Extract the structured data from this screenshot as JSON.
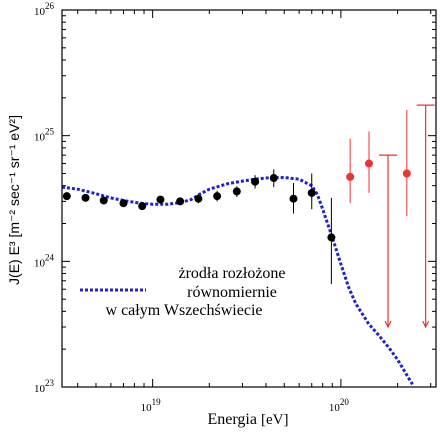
{
  "chart_data": {
    "type": "scatter",
    "x_scale": "log",
    "y_scale": "log",
    "xlim": [
      3.3e+18,
      3.2e+20
    ],
    "ylim": [
      1e+23,
      1e+26
    ],
    "xlabel_main": "Energia",
    "xlabel_unit": "[eV]",
    "ylabel": "J(E) E³ [m⁻² sec⁻¹ sr⁻¹ eV²]",
    "y_ticks": [
      {
        "value": 1e+23,
        "base": "10",
        "exp": "23"
      },
      {
        "value": 1e+24,
        "base": "10",
        "exp": "24"
      },
      {
        "value": 1e+25,
        "base": "10",
        "exp": "25"
      },
      {
        "value": 1e+26,
        "base": "10",
        "exp": "26"
      }
    ],
    "x_ticks": [
      {
        "value": 1e+19,
        "base": "10",
        "exp": "19"
      },
      {
        "value": 1e+20,
        "base": "10",
        "exp": "20"
      }
    ],
    "annotation": [
      "żrodła rozłożone",
      "równomiernie",
      "w całym Wszechświecie"
    ],
    "grid": false,
    "series": [
      {
        "kind": "points",
        "color": "#000000",
        "points": [
          {
            "x": 3.5e+18,
            "y": 3.3e+24,
            "lo": null,
            "hi": null
          },
          {
            "x": 4.4e+18,
            "y": 3.2e+24,
            "lo": null,
            "hi": null
          },
          {
            "x": 5.5e+18,
            "y": 3.05e+24,
            "lo": null,
            "hi": null
          },
          {
            "x": 7e+18,
            "y": 2.9e+24,
            "lo": null,
            "hi": null
          },
          {
            "x": 8.8e+18,
            "y": 2.75e+24,
            "lo": null,
            "hi": null
          },
          {
            "x": 1.1e+19,
            "y": 3.1e+24,
            "lo": null,
            "hi": null
          },
          {
            "x": 1.4e+19,
            "y": 3e+24,
            "lo": null,
            "hi": null
          },
          {
            "x": 1.75e+19,
            "y": 3.15e+24,
            "lo": 2.9e+24,
            "hi": 3.45e+24
          },
          {
            "x": 2.2e+19,
            "y": 3.3e+24,
            "lo": 3e+24,
            "hi": 3.65e+24
          },
          {
            "x": 2.8e+19,
            "y": 3.6e+24,
            "lo": 3.25e+24,
            "hi": 3.95e+24
          },
          {
            "x": 3.5e+19,
            "y": 4.3e+24,
            "lo": 3.8e+24,
            "hi": 4.85e+24
          },
          {
            "x": 4.4e+19,
            "y": 4.6e+24,
            "lo": 3.9e+24,
            "hi": 5.4e+24
          },
          {
            "x": 5.6e+19,
            "y": 3.15e+24,
            "lo": 2.4e+24,
            "hi": 4.2e+24
          },
          {
            "x": 7e+19,
            "y": 3.5e+24,
            "lo": 2.6e+24,
            "hi": 5e+24
          },
          {
            "x": 8.9e+19,
            "y": 1.55e+24,
            "lo": 6.6e+23,
            "hi": 3.2e+24
          }
        ]
      },
      {
        "kind": "points",
        "color": "#ee3333",
        "points": [
          {
            "x": 1.12e+20,
            "y": 4.7e+24,
            "lo": 2.9e+24,
            "hi": 9.5e+24
          },
          {
            "x": 1.41e+20,
            "y": 6e+24,
            "lo": 3.5e+24,
            "hi": 1.08e+25
          },
          {
            "x": 2.24e+20,
            "y": 5e+24,
            "lo": 2.3e+24,
            "hi": 1.6e+25
          }
        ]
      },
      {
        "kind": "upper_limits",
        "color": "#ee3333",
        "points": [
          {
            "x": 1.78e+20,
            "y": 7e+24
          },
          {
            "x": 2.82e+20,
            "y": 1.75e+25
          }
        ]
      },
      {
        "kind": "model_curve",
        "color": "#2222cc",
        "style": "dotted",
        "points": [
          {
            "x": 3.3e+18,
            "y": 3.9e+24
          },
          {
            "x": 4e+18,
            "y": 3.75e+24
          },
          {
            "x": 5e+18,
            "y": 3.45e+24
          },
          {
            "x": 6e+18,
            "y": 3.2e+24
          },
          {
            "x": 7e+18,
            "y": 3.05e+24
          },
          {
            "x": 8e+18,
            "y": 2.95e+24
          },
          {
            "x": 9e+18,
            "y": 2.88e+24
          },
          {
            "x": 1e+19,
            "y": 2.85e+24
          },
          {
            "x": 1.2e+19,
            "y": 2.85e+24
          },
          {
            "x": 1.4e+19,
            "y": 2.93e+24
          },
          {
            "x": 1.6e+19,
            "y": 3.1e+24
          },
          {
            "x": 1.8e+19,
            "y": 3.45e+24
          },
          {
            "x": 2e+19,
            "y": 3.75e+24
          },
          {
            "x": 2.5e+19,
            "y": 4.15e+24
          },
          {
            "x": 3e+19,
            "y": 4.35e+24
          },
          {
            "x": 3.5e+19,
            "y": 4.5e+24
          },
          {
            "x": 4e+19,
            "y": 4.6e+24
          },
          {
            "x": 5e+19,
            "y": 4.65e+24
          },
          {
            "x": 6e+19,
            "y": 4.5e+24
          },
          {
            "x": 7e+19,
            "y": 4e+24
          },
          {
            "x": 7.5e+19,
            "y": 3.4e+24
          },
          {
            "x": 8e+19,
            "y": 2.6e+24
          },
          {
            "x": 9e+19,
            "y": 1.55e+24
          },
          {
            "x": 1e+20,
            "y": 9.5e+23
          },
          {
            "x": 1.1e+20,
            "y": 6.2e+23
          },
          {
            "x": 1.2e+20,
            "y": 4.6e+23
          },
          {
            "x": 1.4e+20,
            "y": 3.2e+23
          },
          {
            "x": 1.6e+20,
            "y": 2.55e+23
          },
          {
            "x": 1.8e+20,
            "y": 2.05e+23
          },
          {
            "x": 2e+20,
            "y": 1.65e+23
          },
          {
            "x": 2.2e+20,
            "y": 1.3e+23
          },
          {
            "x": 2.4e+20,
            "y": 1.05e+23
          }
        ]
      }
    ]
  }
}
